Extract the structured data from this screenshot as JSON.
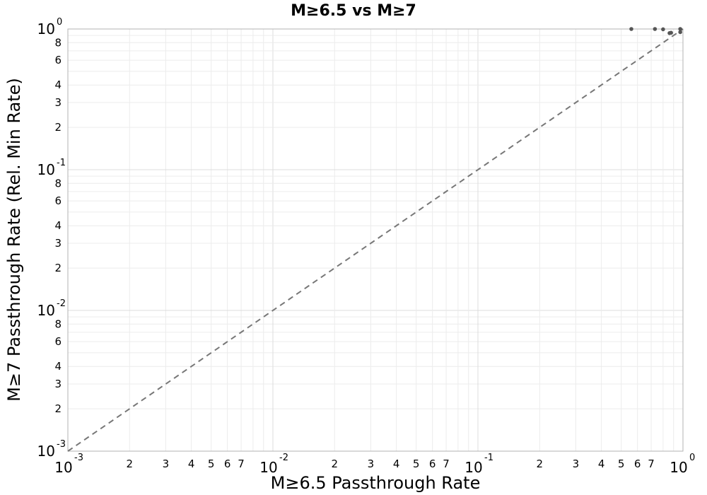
{
  "chart_data": {
    "type": "scatter",
    "title": "M≥6.5 vs M≥7",
    "xlabel": "M≥6.5 Passthrough Rate",
    "ylabel": "M≥7 Passthrough Rate (Rel. Min Rate)",
    "xscale": "log",
    "yscale": "log",
    "xlim": [
      0.001,
      1
    ],
    "ylim": [
      0.001,
      1
    ],
    "grid": true,
    "major_ticks": [
      {
        "base": "10",
        "exp": "-3",
        "value": 0.001
      },
      {
        "base": "10",
        "exp": "-2",
        "value": 0.01
      },
      {
        "base": "10",
        "exp": "-1",
        "value": 0.1
      },
      {
        "base": "10",
        "exp": "0",
        "value": 1
      }
    ],
    "minor_tick_labels": [
      "2",
      "3",
      "4",
      "5",
      "6",
      "7"
    ],
    "y_minor_tick_labels": [
      "2",
      "3",
      "4",
      "6",
      "8"
    ],
    "reference_line": {
      "style": "dashed",
      "color": "#777777",
      "from": [
        0.001,
        0.001
      ],
      "to": [
        1,
        1
      ]
    },
    "marker_color": "#555555",
    "series": [
      {
        "points": [
          {
            "x": 0.56,
            "y": 1.0
          },
          {
            "x": 0.73,
            "y": 1.0
          },
          {
            "x": 0.8,
            "y": 0.995
          },
          {
            "x": 0.97,
            "y": 1.0
          },
          {
            "x": 0.86,
            "y": 0.935
          },
          {
            "x": 0.875,
            "y": 0.94
          },
          {
            "x": 0.97,
            "y": 0.95
          }
        ]
      }
    ]
  }
}
